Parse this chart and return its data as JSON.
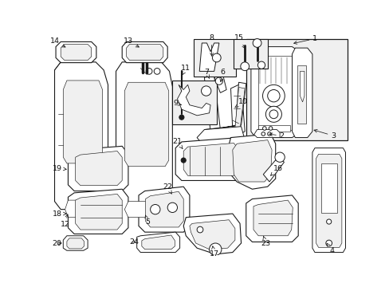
{
  "bg_color": "#ffffff",
  "lc": "#1a1a1a",
  "fc_white": "#ffffff",
  "fc_light": "#f0f0f0",
  "fc_box": "#e8e8e8",
  "lw_main": 0.7,
  "lw_thin": 0.45,
  "label_fs": 6.8,
  "label_color": "#111111",
  "figw": 4.89,
  "figh": 3.6,
  "dpi": 100
}
